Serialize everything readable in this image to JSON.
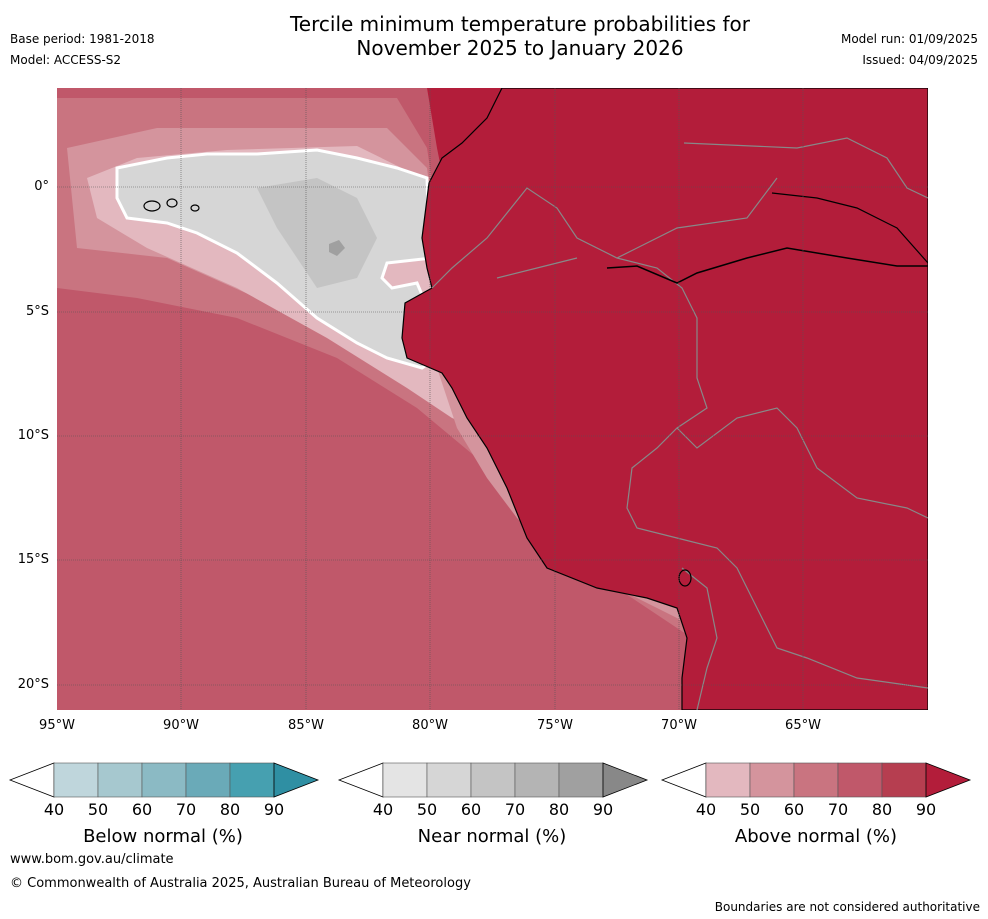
{
  "title_line1": "Tercile minimum temperature probabilities for",
  "title_line2": "November 2025 to January 2026",
  "base_period": "Base period: 1981-2018",
  "model": "Model: ACCESS-S2",
  "model_run": "Model run: 01/09/2025",
  "issued": "Issued: 04/09/2025",
  "lat_labels": [
    "0°",
    "5°S",
    "10°S",
    "15°S",
    "20°S"
  ],
  "lon_labels": [
    "95°W",
    "90°W",
    "85°W",
    "80°W",
    "75°W",
    "70°W",
    "65°W"
  ],
  "legend": {
    "ticks": [
      "40",
      "50",
      "60",
      "70",
      "80",
      "90"
    ],
    "below_title": "Below normal (%)",
    "near_title": "Near normal (%)",
    "above_title": "Above normal (%)",
    "below_colors": [
      "#ffffff",
      "#bfd6dc",
      "#a6c8cf",
      "#8bbac4",
      "#6aaab8",
      "#46a0b0",
      "#2f8fa3"
    ],
    "near_colors": [
      "#ffffff",
      "#e4e4e4",
      "#d6d6d6",
      "#c4c4c4",
      "#b4b4b4",
      "#a0a0a0",
      "#888888"
    ],
    "above_colors": [
      "#ffffff",
      "#e3b8bf",
      "#d4949d",
      "#c97480",
      "#c0586a",
      "#b63e50",
      "#b31d3a"
    ]
  },
  "website": "www.bom.gov.au/climate",
  "copyright": "© Commonwealth of Australia 2025, Australian Bureau of Meteorology",
  "disclaimer": "Boundaries are not considered authoritative"
}
